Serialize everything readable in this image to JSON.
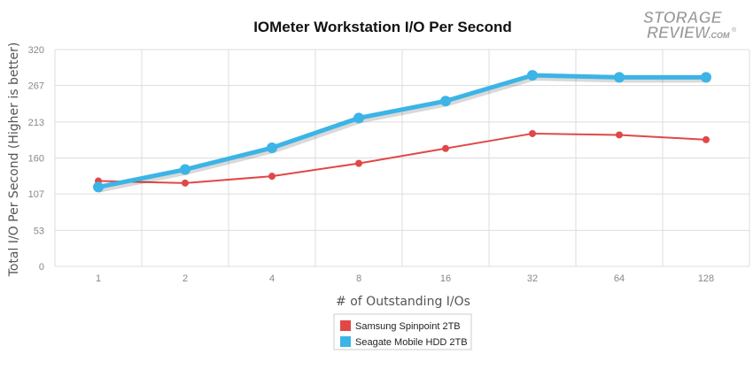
{
  "chart_data": {
    "type": "line",
    "title": "IOMeter Workstation I/O Per Second",
    "xlabel": "# of Outstanding I/Os",
    "ylabel": "Total I/O Per Second (Higher is better)",
    "categories": [
      "1",
      "2",
      "4",
      "8",
      "16",
      "32",
      "64",
      "128"
    ],
    "yticks": [
      "0",
      "53",
      "107",
      "160",
      "213",
      "267",
      "320"
    ],
    "ylim": [
      0,
      320
    ],
    "grid": true,
    "legend_position": "bottom-center",
    "series": [
      {
        "name": "Samsung Spinpoint 2TB",
        "color": "#e04848",
        "values": [
          126,
          123,
          133,
          152,
          174,
          196,
          194,
          187
        ]
      },
      {
        "name": "Seagate Mobile HDD 2TB",
        "color": "#3cb4e6",
        "values": [
          117,
          143,
          175,
          219,
          244,
          282,
          279,
          279
        ]
      }
    ]
  },
  "watermark": {
    "line1": "STORAGE",
    "line2": "REVIEW",
    "suffix": ".COM",
    "mark": "®"
  }
}
